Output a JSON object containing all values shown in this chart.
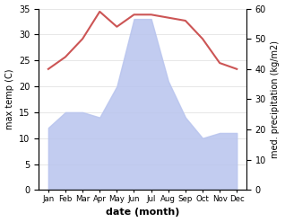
{
  "months": [
    "Jan",
    "Feb",
    "Mar",
    "Apr",
    "May",
    "Jun",
    "Jul",
    "Aug",
    "Sep",
    "Oct",
    "Nov",
    "Dec"
  ],
  "temp": [
    12,
    15,
    15,
    14,
    20,
    33,
    33,
    21,
    14,
    10,
    11,
    11
  ],
  "precip": [
    40,
    44,
    50,
    59,
    54,
    58,
    58,
    57,
    56,
    50,
    42,
    40
  ],
  "fill_color": "#b8c4ee",
  "fill_alpha": 0.85,
  "line_color": "#cc5555",
  "xlabel": "date (month)",
  "ylabel_left": "max temp (C)",
  "ylabel_right": "med. precipitation (kg/m2)",
  "ylim_left": [
    0,
    35
  ],
  "ylim_right": [
    0,
    60
  ],
  "yticks_left": [
    0,
    5,
    10,
    15,
    20,
    25,
    30,
    35
  ],
  "yticks_right": [
    0,
    10,
    20,
    30,
    40,
    50,
    60
  ],
  "bg_color": "#ffffff",
  "grid_color": "#dddddd"
}
